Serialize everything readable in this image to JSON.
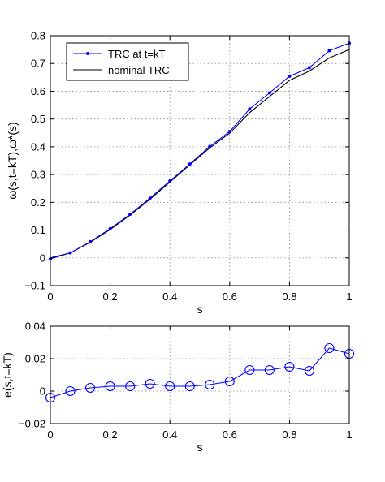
{
  "chart_data": [
    {
      "type": "line",
      "xlabel": "s",
      "ylabel": "ω(s,t=kT),ω*(s)",
      "xlim": [
        0,
        1
      ],
      "ylim": [
        -0.1,
        0.8
      ],
      "xticks": [
        "0",
        "0.2",
        "0.4",
        "0.6",
        "0.8",
        "1"
      ],
      "yticks": [
        "−0.1",
        "0",
        "0.1",
        "0.2",
        "0.3",
        "0.4",
        "0.5",
        "0.6",
        "0.7",
        "0.8"
      ],
      "grid": true,
      "legend_position": "top-left",
      "x": [
        0,
        0.0667,
        0.1333,
        0.2,
        0.2667,
        0.3333,
        0.4,
        0.4667,
        0.5333,
        0.6,
        0.6667,
        0.7333,
        0.8,
        0.8667,
        0.9333,
        1.0
      ],
      "series": [
        {
          "name": "TRC at t=kT",
          "color": "#0000ff",
          "marker": "dot",
          "values": [
            -0.004,
            0.018,
            0.058,
            0.105,
            0.157,
            0.215,
            0.277,
            0.338,
            0.401,
            0.455,
            0.536,
            0.594,
            0.654,
            0.685,
            0.746,
            0.773
          ]
        },
        {
          "name": "nominal TRC",
          "color": "#000000",
          "marker": "none",
          "values": [
            0.0,
            0.018,
            0.056,
            0.102,
            0.154,
            0.211,
            0.273,
            0.335,
            0.396,
            0.449,
            0.523,
            0.581,
            0.639,
            0.673,
            0.72,
            0.75
          ]
        }
      ]
    },
    {
      "type": "line",
      "xlabel": "s",
      "ylabel": "e(s,t=kT)",
      "xlim": [
        0,
        1
      ],
      "ylim": [
        -0.02,
        0.04
      ],
      "xticks": [
        "0",
        "0.2",
        "0.4",
        "0.6",
        "0.8",
        "1"
      ],
      "yticks": [
        "−0.02",
        "0",
        "0.02",
        "0.04"
      ],
      "grid": true,
      "x": [
        0,
        0.0667,
        0.1333,
        0.2,
        0.2667,
        0.3333,
        0.4,
        0.4667,
        0.5333,
        0.6,
        0.6667,
        0.7333,
        0.8,
        0.8667,
        0.9333,
        1.0
      ],
      "series": [
        {
          "name": "",
          "color": "#0000ff",
          "marker": "circle",
          "values": [
            -0.004,
            0.0,
            0.002,
            0.003,
            0.003,
            0.0045,
            0.003,
            0.003,
            0.004,
            0.006,
            0.013,
            0.013,
            0.015,
            0.0125,
            0.0265,
            0.023
          ]
        }
      ]
    }
  ]
}
